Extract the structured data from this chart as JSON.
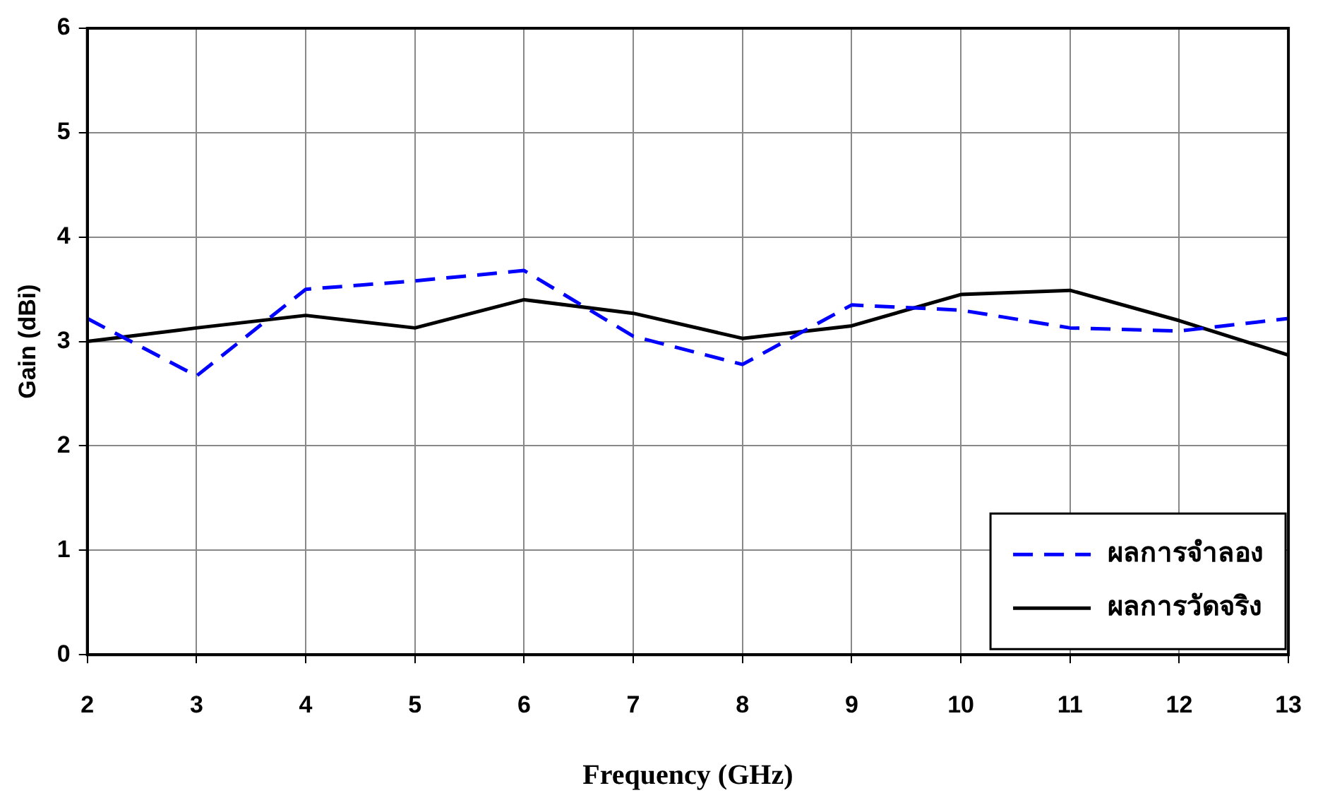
{
  "chart_data": {
    "type": "line",
    "xlabel": "Frequency (GHz)",
    "ylabel": "Gain (dBi)",
    "x": [
      2,
      3,
      4,
      5,
      6,
      7,
      8,
      9,
      10,
      11,
      12,
      13
    ],
    "series": [
      {
        "name": "ผลการจำลอง",
        "color": "#0000ff",
        "line_style": "dashed",
        "values": [
          3.22,
          2.67,
          3.5,
          3.58,
          3.68,
          3.05,
          2.78,
          3.35,
          3.3,
          3.13,
          3.1,
          3.22
        ]
      },
      {
        "name": "ผลการวัดจริง",
        "color": "#000000",
        "line_style": "solid",
        "values": [
          3.0,
          3.13,
          3.25,
          3.13,
          3.4,
          3.27,
          3.03,
          3.15,
          3.45,
          3.49,
          3.2,
          2.87
        ]
      }
    ],
    "xlim": [
      2,
      13
    ],
    "xticks": [
      2,
      3,
      4,
      5,
      6,
      7,
      8,
      9,
      10,
      11,
      12,
      13
    ],
    "ylim": [
      0,
      6
    ],
    "yticks": [
      0,
      1,
      2,
      3,
      4,
      5,
      6
    ],
    "grid": true,
    "legend": "bottom right",
    "marker": "none"
  }
}
